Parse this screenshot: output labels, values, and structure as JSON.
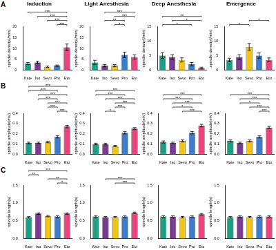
{
  "chart_data": [
    {
      "type": "bar",
      "panel": "A",
      "title": "Induction",
      "y_label": "spindle density(/min)",
      "grid": false,
      "categories": [
        "Kate",
        "Iso",
        "Sevo",
        "Pro",
        "Eto"
      ],
      "colors": [
        "#1e9e82",
        "#7a3b93",
        "#f0c419",
        "#3d7cc9",
        "#e8467c"
      ],
      "values": [
        3,
        3.5,
        1.5,
        2,
        10.5
      ],
      "errors": [
        0.5,
        0.6,
        0.3,
        0.3,
        1.5
      ],
      "ylim": [
        0,
        20
      ],
      "yticks": [
        0,
        5,
        10,
        15,
        20
      ],
      "annotations": [
        {
          "from": "Pro",
          "to": "Eto",
          "text": "***"
        },
        {
          "from": "Sevo",
          "to": "Eto",
          "text": "***"
        },
        {
          "from": "Iso",
          "to": "Eto",
          "text": "***"
        },
        {
          "from": "Kate",
          "to": "Eto",
          "text": "***"
        }
      ]
    },
    {
      "type": "bar",
      "title": "Light Anesthesia",
      "y_label": "spindle density(/min)",
      "grid": false,
      "categories": [
        "Kate",
        "Iso",
        "Sevo",
        "Pro",
        "Eto"
      ],
      "colors": [
        "#1e9e82",
        "#7a3b93",
        "#f0c419",
        "#3d7cc9",
        "#e8467c"
      ],
      "values": [
        3.5,
        2,
        2,
        7,
        6
      ],
      "errors": [
        1.0,
        0.5,
        0.5,
        1.2,
        1.0
      ],
      "ylim": [
        0,
        20
      ],
      "yticks": [
        0,
        5,
        10,
        15,
        20
      ],
      "annotations": [
        {
          "from": "Sevo",
          "to": "Pro",
          "text": "*"
        },
        {
          "from": "Iso",
          "to": "Pro",
          "text": "**"
        },
        {
          "from": "Sevo",
          "to": "Eto",
          "text": "***"
        },
        {
          "from": "Iso",
          "to": "Eto",
          "text": "***"
        }
      ]
    },
    {
      "type": "bar",
      "title": "Deep Anesthesia",
      "y_label": "spindle density(/min)",
      "grid": false,
      "categories": [
        "Kate",
        "Iso",
        "Sevo",
        "Pro",
        "Eto"
      ],
      "colors": [
        "#1e9e82",
        "#7a3b93",
        "#f0c419",
        "#3d7cc9",
        "#e8467c"
      ],
      "values": [
        5,
        4.5,
        3.5,
        2,
        0.7
      ],
      "errors": [
        1.0,
        0.8,
        0.7,
        0.6,
        0.3
      ],
      "ylim": [
        0,
        15
      ],
      "yticks": [
        0,
        5,
        10,
        15
      ],
      "annotations": [
        {
          "from": "Kate",
          "to": "Pro",
          "text": "*"
        },
        {
          "from": "Iso",
          "to": "Eto",
          "text": "*"
        },
        {
          "from": "Kate",
          "to": "Eto",
          "text": "**"
        }
      ]
    },
    {
      "type": "bar",
      "title": "Emergence",
      "y_label": "spindle density(/min)",
      "grid": false,
      "categories": [
        "Kate",
        "Iso",
        "Sevo",
        "Pro",
        "Eto"
      ],
      "colors": [
        "#1e9e82",
        "#7a3b93",
        "#f0c419",
        "#3d7cc9",
        "#e8467c"
      ],
      "values": [
        3.5,
        4.5,
        8,
        5,
        3.5
      ],
      "errors": [
        0.6,
        0.8,
        1.2,
        0.9,
        0.7
      ],
      "ylim": [
        0,
        15
      ],
      "yticks": [
        0,
        5,
        10,
        15
      ],
      "annotations": [
        {
          "from": "Kate",
          "to": "Sevo",
          "text": "*"
        },
        {
          "from": "Sevo",
          "to": "Eto",
          "text": "*"
        }
      ]
    },
    {
      "type": "bar",
      "panel": "B",
      "y_label": "spindle amplitude(mV)",
      "grid": false,
      "categories": [
        "Kate",
        "Iso",
        "Sevo",
        "Pro",
        "Eto"
      ],
      "colors": [
        "#1e9e82",
        "#7a3b93",
        "#f0c419",
        "#3d7cc9",
        "#e8467c"
      ],
      "values": [
        0.11,
        0.11,
        0.12,
        0.17,
        0.27
      ],
      "errors": [
        0.008,
        0.008,
        0.008,
        0.01,
        0.012
      ],
      "ylim": [
        0,
        0.4
      ],
      "yticks": [
        {
          "value": 0,
          "label": "0.0"
        },
        0.1,
        0.2,
        0.3,
        0.4
      ],
      "annotations": [
        {
          "from": "Pro",
          "to": "Eto",
          "text": "***"
        },
        {
          "from": "Sevo",
          "to": "Pro",
          "text": "***"
        },
        {
          "from": "Sevo",
          "to": "Eto",
          "text": "***"
        },
        {
          "from": "Iso",
          "to": "Pro",
          "text": "***"
        },
        {
          "from": "Iso",
          "to": "Eto",
          "text": "***"
        },
        {
          "from": "Kate",
          "to": "Pro",
          "text": "***"
        },
        {
          "from": "Kate",
          "to": "Eto",
          "text": "***"
        }
      ]
    },
    {
      "type": "bar",
      "y_label": "spindle amplitude(mV)",
      "grid": false,
      "categories": [
        "Kate",
        "Iso",
        "Sevo",
        "Pro",
        "Eto"
      ],
      "colors": [
        "#1e9e82",
        "#7a3b93",
        "#f0c419",
        "#3d7cc9",
        "#e8467c"
      ],
      "values": [
        0.1,
        0.1,
        0.08,
        0.21,
        0.25
      ],
      "errors": [
        0.008,
        0.008,
        0.006,
        0.012,
        0.01
      ],
      "ylim": [
        0,
        0.4
      ],
      "yticks": [
        {
          "value": 0,
          "label": "0.0"
        },
        0.1,
        0.2,
        0.3,
        0.4
      ],
      "annotations": [
        {
          "from": "Iso",
          "to": "Sevo",
          "text": "*"
        },
        {
          "from": "Sevo",
          "to": "Pro",
          "text": "***"
        },
        {
          "from": "Sevo",
          "to": "Eto",
          "text": "***"
        },
        {
          "from": "Iso",
          "to": "Eto",
          "text": "***"
        },
        {
          "from": "Kate",
          "to": "Pro",
          "text": "***"
        },
        {
          "from": "Kate",
          "to": "Eto",
          "text": "***"
        }
      ]
    },
    {
      "type": "bar",
      "y_label": "spindle amplitude(mV)",
      "grid": false,
      "categories": [
        "Kate",
        "Iso",
        "Sevo",
        "Pro",
        "Eto"
      ],
      "colors": [
        "#1e9e82",
        "#7a3b93",
        "#f0c419",
        "#3d7cc9",
        "#e8467c"
      ],
      "values": [
        0.12,
        0.11,
        0.13,
        0.21,
        0.28
      ],
      "errors": [
        0.01,
        0.008,
        0.01,
        0.012,
        0.012
      ],
      "ylim": [
        0,
        0.4
      ],
      "yticks": [
        {
          "value": 0,
          "label": "0.0"
        },
        0.1,
        0.2,
        0.3,
        0.4
      ],
      "annotations": [
        {
          "from": "Sevo",
          "to": "Eto",
          "text": "***"
        },
        {
          "from": "Iso",
          "to": "Pro",
          "text": "*"
        },
        {
          "from": "Iso",
          "to": "Eto",
          "text": "***"
        },
        {
          "from": "Kate",
          "to": "Pro",
          "text": "***"
        },
        {
          "from": "Kate",
          "to": "Eto",
          "text": "***"
        }
      ]
    },
    {
      "type": "bar",
      "y_label": "spindle amplitude(mV)",
      "grid": false,
      "categories": [
        "Kate",
        "Iso",
        "Sevo",
        "Pro",
        "Eto"
      ],
      "colors": [
        "#1e9e82",
        "#7a3b93",
        "#f0c419",
        "#3d7cc9",
        "#e8467c"
      ],
      "values": [
        0.13,
        0.11,
        0.13,
        0.17,
        0.26
      ],
      "errors": [
        0.01,
        0.008,
        0.01,
        0.01,
        0.012
      ],
      "ylim": [
        0,
        0.4
      ],
      "yticks": [
        {
          "value": 0,
          "label": "0.0"
        },
        0.1,
        0.2,
        0.3,
        0.4
      ],
      "annotations": [
        {
          "from": "Pro",
          "to": "Eto",
          "text": "***"
        },
        {
          "from": "Sevo",
          "to": "Eto",
          "text": "***"
        },
        {
          "from": "Iso",
          "to": "Pro",
          "text": "*"
        },
        {
          "from": "Iso",
          "to": "Eto",
          "text": "***"
        },
        {
          "from": "Kate",
          "to": "Eto",
          "text": "***"
        }
      ]
    },
    {
      "type": "bar",
      "panel": "C",
      "y_label": "spindle length(s)",
      "grid": false,
      "categories": [
        "Kate",
        "Iso",
        "Sevo",
        "Pro",
        "Eto"
      ],
      "colors": [
        "#1e9e82",
        "#7a3b93",
        "#f0c419",
        "#3d7cc9",
        "#e8467c"
      ],
      "values": [
        0.6,
        0.7,
        0.63,
        0.62,
        0.7
      ],
      "errors": [
        0.02,
        0.02,
        0.02,
        0.02,
        0.02
      ],
      "ylim": [
        0,
        1.5
      ],
      "yticks": [
        {
          "value": 0,
          "label": "0.0"
        },
        0.5,
        {
          "value": 1,
          "label": "1.0"
        },
        1.5
      ],
      "annotations": [
        {
          "from": "Pro",
          "to": "Eto",
          "text": "*"
        },
        {
          "from": "Sevo",
          "to": "Eto",
          "text": "**"
        },
        {
          "from": "Kate",
          "to": "Iso",
          "text": "**"
        },
        {
          "from": "Kate",
          "to": "Eto",
          "text": "***"
        }
      ]
    },
    {
      "type": "bar",
      "y_label": "spindle length(s)",
      "grid": false,
      "categories": [
        "Kate",
        "Iso",
        "Sevo",
        "Pro",
        "Eto"
      ],
      "colors": [
        "#1e9e82",
        "#7a3b93",
        "#f0c419",
        "#3d7cc9",
        "#e8467c"
      ],
      "values": [
        0.62,
        0.6,
        0.6,
        0.62,
        0.72
      ],
      "errors": [
        0.02,
        0.02,
        0.02,
        0.02,
        0.02
      ],
      "ylim": [
        0,
        1.5
      ],
      "yticks": [
        {
          "value": 0,
          "label": "0.0"
        },
        0.5,
        {
          "value": 1,
          "label": "1.0"
        },
        1.5
      ],
      "annotations": [
        {
          "from": "Sevo",
          "to": "Eto",
          "text": "***"
        },
        {
          "from": "Iso",
          "to": "Eto",
          "text": "***"
        }
      ]
    },
    {
      "type": "bar",
      "y_label": "spindle length(s)",
      "grid": false,
      "categories": [
        "Kate",
        "Iso",
        "Sevo",
        "Pro",
        "Eto"
      ],
      "colors": [
        "#1e9e82",
        "#7a3b93",
        "#f0c419",
        "#3d7cc9",
        "#e8467c"
      ],
      "values": [
        0.62,
        0.62,
        0.6,
        0.62,
        0.68
      ],
      "errors": [
        0.02,
        0.02,
        0.02,
        0.02,
        0.02
      ],
      "ylim": [
        0,
        1.5
      ],
      "yticks": [
        {
          "value": 0,
          "label": "0.0"
        },
        0.5,
        {
          "value": 1,
          "label": "1.0"
        },
        1.5
      ],
      "annotations": []
    },
    {
      "type": "bar",
      "y_label": "spindle length(s)",
      "grid": false,
      "categories": [
        "Kate",
        "Iso",
        "Sevo",
        "Pro",
        "Eto"
      ],
      "colors": [
        "#1e9e82",
        "#7a3b93",
        "#f0c419",
        "#3d7cc9",
        "#e8467c"
      ],
      "values": [
        0.6,
        0.62,
        0.6,
        0.62,
        0.62
      ],
      "errors": [
        0.02,
        0.02,
        0.02,
        0.02,
        0.02
      ],
      "ylim": [
        0,
        1.5
      ],
      "yticks": [
        {
          "value": 0,
          "label": "0.0"
        },
        0.5,
        {
          "value": 1,
          "label": "1.0"
        },
        1.5
      ],
      "annotations": []
    }
  ]
}
